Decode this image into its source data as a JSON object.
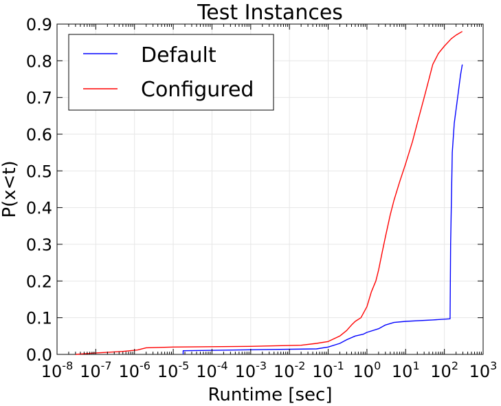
{
  "chart_data": {
    "type": "line",
    "title": "Test Instances",
    "xlabel": "Runtime [sec]",
    "ylabel": "P(x<t)",
    "xscale": "log",
    "xlim": [
      1e-08,
      1000
    ],
    "ylim": [
      0.0,
      0.9
    ],
    "grid": true,
    "legend_position": "top-left",
    "x_ticks": [
      {
        "base": "10",
        "exp": "-8",
        "value": 1e-08
      },
      {
        "base": "10",
        "exp": "-7",
        "value": 1e-07
      },
      {
        "base": "10",
        "exp": "-6",
        "value": 1e-06
      },
      {
        "base": "10",
        "exp": "-5",
        "value": 1e-05
      },
      {
        "base": "10",
        "exp": "-4",
        "value": 0.0001
      },
      {
        "base": "10",
        "exp": "-3",
        "value": 0.001
      },
      {
        "base": "10",
        "exp": "-2",
        "value": 0.01
      },
      {
        "base": "10",
        "exp": "-1",
        "value": 0.1
      },
      {
        "base": "10",
        "exp": "0",
        "value": 1
      },
      {
        "base": "10",
        "exp": "1",
        "value": 10
      },
      {
        "base": "10",
        "exp": "2",
        "value": 100
      },
      {
        "base": "10",
        "exp": "3",
        "value": 1000
      }
    ],
    "y_ticks": [
      "0.0",
      "0.1",
      "0.2",
      "0.3",
      "0.4",
      "0.5",
      "0.6",
      "0.7",
      "0.8",
      "0.9"
    ],
    "series": [
      {
        "name": "Default",
        "color": "#0000ff",
        "points": [
          [
            1.8e-05,
            0.0
          ],
          [
            1.8e-05,
            0.01
          ],
          [
            0.05,
            0.015
          ],
          [
            0.1,
            0.02
          ],
          [
            0.2,
            0.03
          ],
          [
            0.3,
            0.04
          ],
          [
            0.5,
            0.05
          ],
          [
            0.8,
            0.055
          ],
          [
            1.0,
            0.06
          ],
          [
            2.0,
            0.07
          ],
          [
            3.0,
            0.08
          ],
          [
            5.0,
            0.087
          ],
          [
            10.0,
            0.09
          ],
          [
            50.0,
            0.094
          ],
          [
            140.0,
            0.097
          ],
          [
            145.0,
            0.3
          ],
          [
            160.0,
            0.55
          ],
          [
            180.0,
            0.63
          ],
          [
            220.0,
            0.7
          ],
          [
            260.0,
            0.76
          ],
          [
            290.0,
            0.79
          ]
        ]
      },
      {
        "name": "Configured",
        "color": "#ff0000",
        "points": [
          [
            3e-08,
            0.0
          ],
          [
            1e-07,
            0.004
          ],
          [
            5e-07,
            0.008
          ],
          [
            1.2e-06,
            0.012
          ],
          [
            2e-06,
            0.018
          ],
          [
            1e-05,
            0.02
          ],
          [
            0.001,
            0.022
          ],
          [
            0.02,
            0.025
          ],
          [
            0.05,
            0.03
          ],
          [
            0.1,
            0.035
          ],
          [
            0.2,
            0.05
          ],
          [
            0.3,
            0.065
          ],
          [
            0.4,
            0.08
          ],
          [
            0.5,
            0.09
          ],
          [
            0.7,
            0.1
          ],
          [
            1.0,
            0.13
          ],
          [
            1.3,
            0.17
          ],
          [
            1.7,
            0.2
          ],
          [
            2.0,
            0.23
          ],
          [
            2.5,
            0.28
          ],
          [
            3.0,
            0.32
          ],
          [
            4.0,
            0.38
          ],
          [
            5.0,
            0.42
          ],
          [
            7.0,
            0.47
          ],
          [
            10.0,
            0.52
          ],
          [
            15.0,
            0.58
          ],
          [
            20.0,
            0.63
          ],
          [
            30.0,
            0.7
          ],
          [
            40.0,
            0.75
          ],
          [
            50.0,
            0.79
          ],
          [
            70.0,
            0.82
          ],
          [
            100.0,
            0.84
          ],
          [
            150.0,
            0.86
          ],
          [
            200.0,
            0.87
          ],
          [
            290.0,
            0.88
          ]
        ]
      }
    ]
  }
}
